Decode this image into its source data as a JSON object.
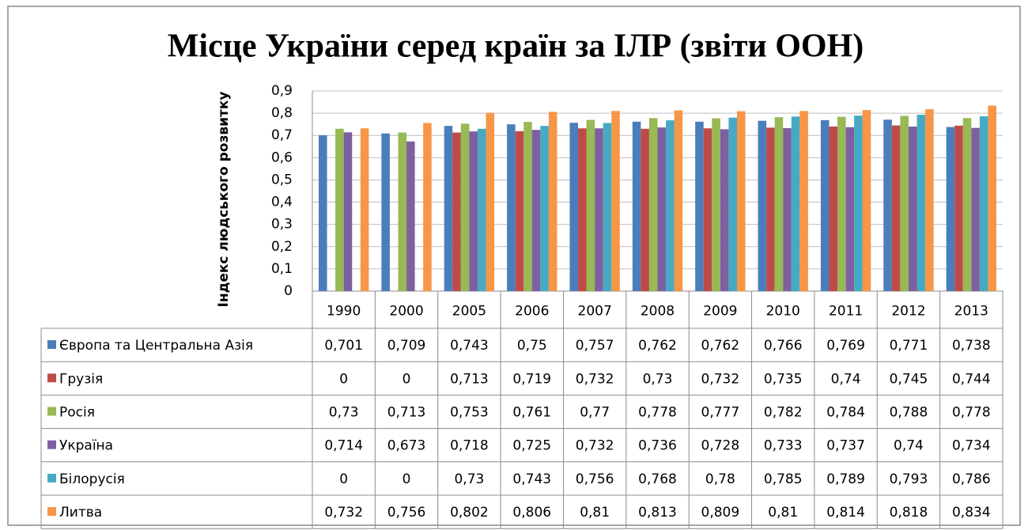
{
  "chart_data": {
    "type": "bar",
    "title": "Місце України серед країн за ІЛР (звіти ООН)",
    "y_label": "Індекс людського розвитку",
    "categories": [
      "1990",
      "2000",
      "2005",
      "2006",
      "2007",
      "2008",
      "2009",
      "2010",
      "2011",
      "2012",
      "2013"
    ],
    "ylim": [
      0,
      0.9
    ],
    "yticks": [
      0,
      {
        "value": 0.1,
        "label": "0,1"
      },
      {
        "value": 0.2,
        "label": "0,2"
      },
      {
        "value": 0.3,
        "label": "0,3"
      },
      {
        "value": 0.4,
        "label": "0,4"
      },
      {
        "value": 0.5,
        "label": "0,5"
      },
      {
        "value": 0.6,
        "label": "0,6"
      },
      {
        "value": 0.7,
        "label": "0,7"
      },
      {
        "value": 0.8,
        "label": "0,8"
      },
      {
        "value": 0.9,
        "label": "0,9"
      }
    ],
    "grid": true,
    "series": [
      {
        "name": "Європа та Центральна Азія",
        "color": "#4a7ebb",
        "values": [
          0.701,
          0.709,
          0.743,
          0.75,
          0.757,
          0.762,
          0.762,
          0.766,
          0.769,
          0.771,
          0.738
        ],
        "value_labels": [
          "0,701",
          "0,709",
          "0,743",
          "0,75",
          "0,757",
          "0,762",
          "0,762",
          "0,766",
          "0,769",
          "0,771",
          "0,738"
        ]
      },
      {
        "name": "Грузія",
        "color": "#be4b48",
        "values": [
          0,
          0,
          0.713,
          0.719,
          0.732,
          0.73,
          0.732,
          0.735,
          0.74,
          0.745,
          0.744
        ],
        "value_labels": [
          "0",
          "0",
          "0,713",
          "0,719",
          "0,732",
          "0,73",
          "0,732",
          "0,735",
          "0,74",
          "0,745",
          "0,744"
        ]
      },
      {
        "name": "Росія",
        "color": "#98b954",
        "values": [
          0.73,
          0.713,
          0.753,
          0.761,
          0.77,
          0.778,
          0.777,
          0.782,
          0.784,
          0.788,
          0.778
        ],
        "value_labels": [
          "0,73",
          "0,713",
          "0,753",
          "0,761",
          "0,77",
          "0,778",
          "0,777",
          "0,782",
          "0,784",
          "0,788",
          "0,778"
        ]
      },
      {
        "name": "Україна",
        "color": "#7d60a0",
        "values": [
          0.714,
          0.673,
          0.718,
          0.725,
          0.732,
          0.736,
          0.728,
          0.733,
          0.737,
          0.74,
          0.734
        ],
        "value_labels": [
          "0,714",
          "0,673",
          "0,718",
          "0,725",
          "0,732",
          "0,736",
          "0,728",
          "0,733",
          "0,737",
          "0,74",
          "0,734"
        ]
      },
      {
        "name": "Білорусія",
        "color": "#46aac5",
        "values": [
          0,
          0,
          0.73,
          0.743,
          0.756,
          0.768,
          0.78,
          0.785,
          0.789,
          0.793,
          0.786
        ],
        "value_labels": [
          "0",
          "0",
          "0,73",
          "0,743",
          "0,756",
          "0,768",
          "0,78",
          "0,785",
          "0,789",
          "0,793",
          "0,786"
        ]
      },
      {
        "name": "Литва",
        "color": "#f79646",
        "values": [
          0.732,
          0.756,
          0.802,
          0.806,
          0.81,
          0.813,
          0.809,
          0.81,
          0.814,
          0.818,
          0.834
        ],
        "value_labels": [
          "0,732",
          "0,756",
          "0,802",
          "0,806",
          "0,81",
          "0,813",
          "0,809",
          "0,81",
          "0,814",
          "0,818",
          "0,834"
        ]
      }
    ]
  }
}
